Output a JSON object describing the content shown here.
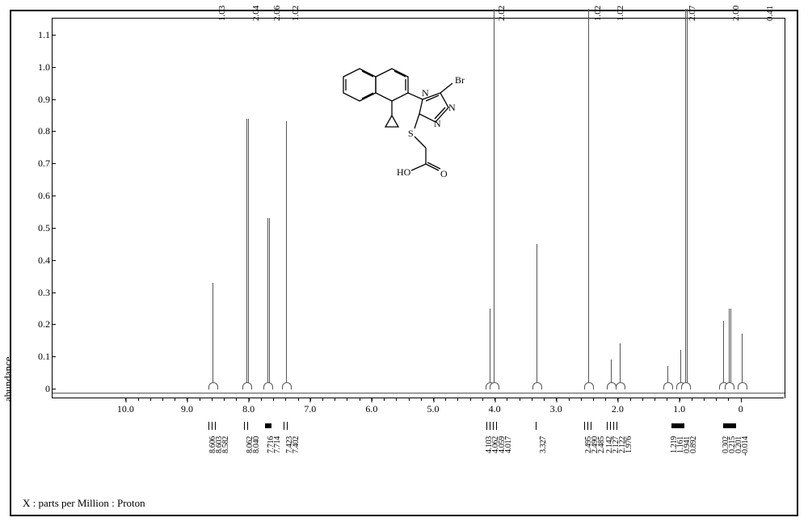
{
  "axes": {
    "y_label": "abundance",
    "x_label": "X : parts per Million : Proton",
    "y_ticks": [
      0,
      0.1,
      0.2,
      0.3,
      0.4,
      0.5,
      0.6,
      0.7,
      0.8,
      0.9,
      1.0,
      1.1
    ],
    "y_min": -0.03,
    "y_max": 1.15,
    "x_ticks": [
      10.0,
      9.0,
      8.0,
      7.0,
      6.0,
      5.0,
      4.0,
      3.0,
      2.0,
      1.0,
      0
    ],
    "x_min": -0.7,
    "x_max": 11.2
  },
  "style": {
    "border_color": "#000000",
    "trace_color": "#555555",
    "background": "#ffffff",
    "font": "Times New Roman"
  },
  "integrations": [
    {
      "ppm": 8.6,
      "label": "1.03"
    },
    {
      "ppm": 8.05,
      "label": "2.04"
    },
    {
      "ppm": 7.71,
      "label": "2.06"
    },
    {
      "ppm": 7.41,
      "label": "1.02"
    },
    {
      "ppm": 4.06,
      "label": "2.02"
    },
    {
      "ppm": 2.49,
      "label": "1.02"
    },
    {
      "ppm": 2.12,
      "label": "1.02"
    },
    {
      "ppm": 0.95,
      "label": "2.07"
    },
    {
      "ppm": 0.25,
      "label": "2.00"
    },
    {
      "ppm": -0.3,
      "label": "0.41"
    }
  ],
  "peaks": [
    {
      "ppm": 8.6,
      "height": 0.3,
      "style": "single"
    },
    {
      "ppm": 8.05,
      "height": 0.81,
      "style": "dbl"
    },
    {
      "ppm": 7.71,
      "height": 0.5,
      "style": "dbl"
    },
    {
      "ppm": 7.41,
      "height": 0.8,
      "style": "single"
    },
    {
      "ppm": 4.1,
      "height": 0.22,
      "style": "single"
    },
    {
      "ppm": 4.03,
      "height": 1.15,
      "style": "single"
    },
    {
      "ppm": 3.33,
      "height": 0.42,
      "style": "single"
    },
    {
      "ppm": 2.49,
      "height": 1.15,
      "style": "single"
    },
    {
      "ppm": 2.13,
      "height": 0.06,
      "style": "single"
    },
    {
      "ppm": 1.98,
      "height": 0.11,
      "style": "single"
    },
    {
      "ppm": 1.2,
      "height": 0.04,
      "style": "single"
    },
    {
      "ppm": 1.0,
      "height": 0.09,
      "style": "single"
    },
    {
      "ppm": 0.92,
      "height": 1.15,
      "style": "dbl"
    },
    {
      "ppm": 0.3,
      "height": 0.18,
      "style": "single"
    },
    {
      "ppm": 0.21,
      "height": 0.22,
      "style": "dbl"
    },
    {
      "ppm": -0.01,
      "height": 0.14,
      "style": "single"
    }
  ],
  "peak_groups": [
    {
      "ppm": 8.6,
      "labels": [
        "8.606",
        "8.603",
        "8.582"
      ],
      "mark": "lines"
    },
    {
      "ppm": 8.05,
      "labels": [
        "8.062",
        "8.040"
      ],
      "mark": "lines"
    },
    {
      "ppm": 7.71,
      "labels": [
        "7.716",
        "7.714"
      ],
      "mark": "filled"
    },
    {
      "ppm": 7.41,
      "labels": [
        "7.423",
        "7.402"
      ],
      "mark": "lines"
    },
    {
      "ppm": 4.06,
      "labels": [
        "4.103",
        "4.062",
        "4.059",
        "4.017"
      ],
      "mark": "lines"
    },
    {
      "ppm": 3.33,
      "labels": [
        "3.327"
      ],
      "mark": "line"
    },
    {
      "ppm": 2.49,
      "labels": [
        "2.495",
        "2.490",
        "2.485"
      ],
      "mark": "lines"
    },
    {
      "ppm": 2.1,
      "labels": [
        "2.142",
        "2.127",
        "2.122",
        "1.976"
      ],
      "mark": "lines"
    },
    {
      "ppm": 1.05,
      "labels": [
        "1.219",
        "1.161",
        "0.941",
        "0.892"
      ],
      "mark": "filled"
    },
    {
      "ppm": 0.2,
      "labels": [
        "0.302",
        "0.215",
        "0.201",
        "-0.014"
      ],
      "mark": "filled"
    }
  ],
  "molecule": {
    "atoms": [
      "Br",
      "N",
      "N",
      "N",
      "S",
      "O",
      "HO"
    ],
    "description": "naphthalene-cyclopropyl-triazole-Br-S-CH2-COOH"
  }
}
